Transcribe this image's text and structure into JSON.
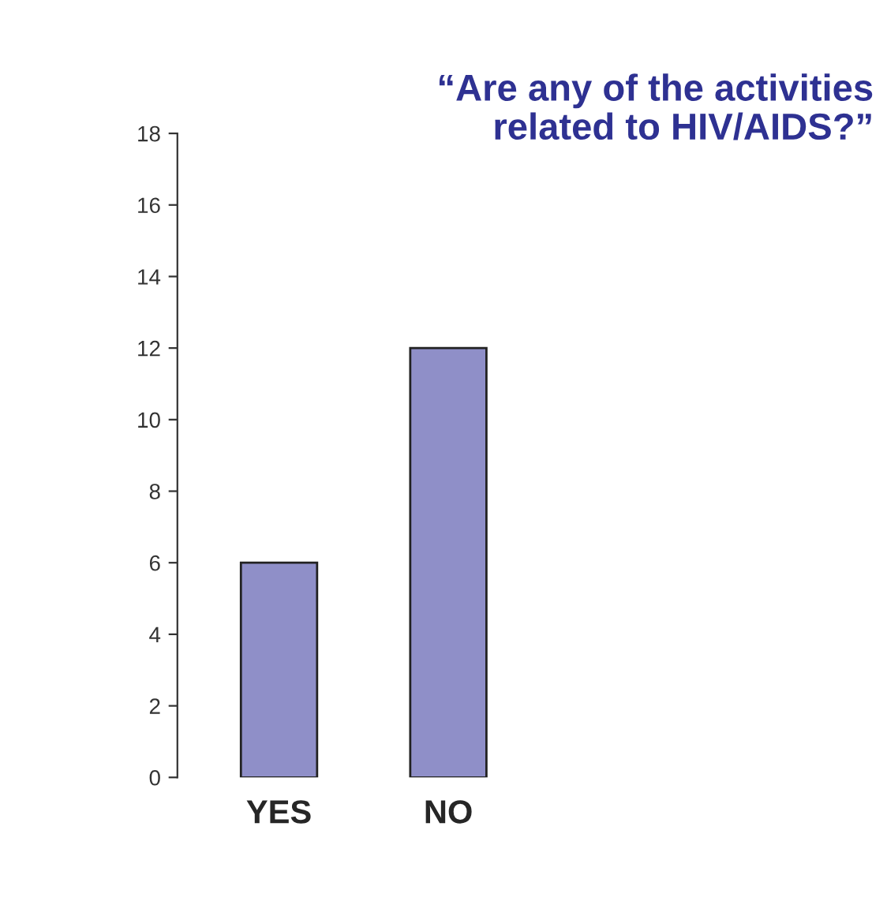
{
  "chart_data": {
    "type": "bar",
    "title": "“Are any of the activities related to HIV/AIDS?”",
    "categories": [
      "YES",
      "NO"
    ],
    "series": [
      {
        "color": "#8f8fc8",
        "values": [
          6,
          12
        ]
      }
    ],
    "ylim": [
      0,
      18
    ],
    "yticks": [
      0,
      2,
      4,
      6,
      8,
      10,
      12,
      14,
      16,
      18
    ],
    "grid": false,
    "legend": false
  }
}
